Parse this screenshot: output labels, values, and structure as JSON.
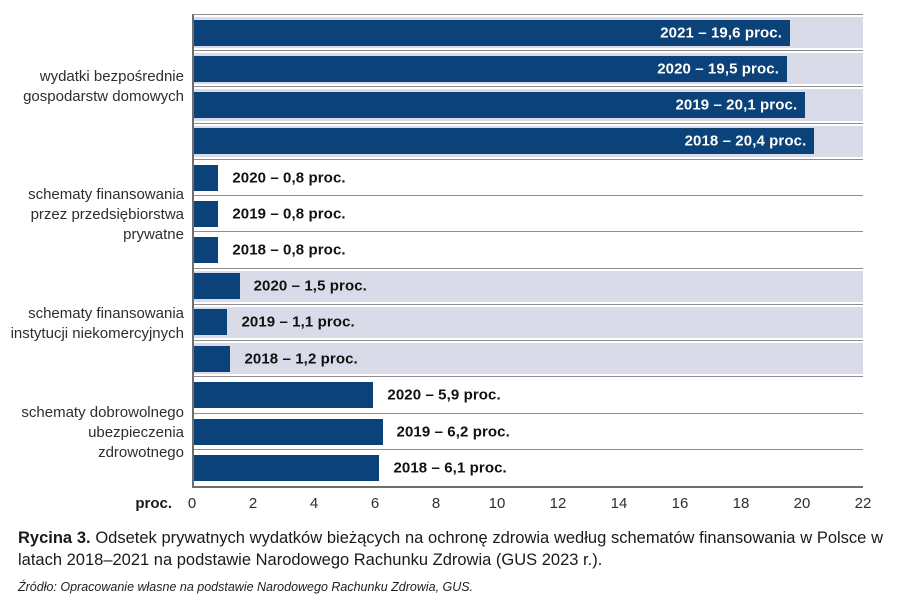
{
  "chart_data": {
    "type": "bar",
    "orientation": "horizontal",
    "unit_label": "proc.",
    "xlim": [
      0,
      22
    ],
    "x_ticks": [
      0,
      2,
      4,
      6,
      8,
      10,
      12,
      14,
      16,
      18,
      20,
      22
    ],
    "grid": false,
    "groups": [
      {
        "category_lines": [
          "wydatki bezpośrednie",
          "gospodarstw domowych"
        ],
        "banded": true,
        "bars": [
          {
            "year": "2021",
            "value": 19.6,
            "label": "2021 – 19,6 proc.",
            "label_inside": true
          },
          {
            "year": "2020",
            "value": 19.5,
            "label": "2020 – 19,5 proc.",
            "label_inside": true
          },
          {
            "year": "2019",
            "value": 20.1,
            "label": "2019 – 20,1 proc.",
            "label_inside": true
          },
          {
            "year": "2018",
            "value": 20.4,
            "label": "2018 – 20,4 proc.",
            "label_inside": true
          }
        ]
      },
      {
        "category_lines": [
          "schematy finansowania",
          "przez przedsiębiorstwa",
          "prywatne"
        ],
        "banded": false,
        "bars": [
          {
            "year": "2020",
            "value": 0.8,
            "label": "2020 – 0,8 proc.",
            "label_inside": false
          },
          {
            "year": "2019",
            "value": 0.8,
            "label": "2019 – 0,8 proc.",
            "label_inside": false
          },
          {
            "year": "2018",
            "value": 0.8,
            "label": "2018 – 0,8 proc.",
            "label_inside": false
          }
        ]
      },
      {
        "category_lines": [
          "schematy finansowania",
          "instytucji niekomercyjnych"
        ],
        "banded": true,
        "bars": [
          {
            "year": "2020",
            "value": 1.5,
            "label": "2020 – 1,5 proc.",
            "label_inside": false
          },
          {
            "year": "2019",
            "value": 1.1,
            "label": "2019 – 1,1 proc.",
            "label_inside": false
          },
          {
            "year": "2018",
            "value": 1.2,
            "label": "2018 – 1,2 proc.",
            "label_inside": false
          }
        ]
      },
      {
        "category_lines": [
          "schematy dobrowolnego",
          "ubezpieczenia zdrowotnego"
        ],
        "banded": false,
        "bars": [
          {
            "year": "2020",
            "value": 5.9,
            "label": "2020 – 5,9 proc.",
            "label_inside": false
          },
          {
            "year": "2019",
            "value": 6.2,
            "label": "2019 – 6,2 proc.",
            "label_inside": false
          },
          {
            "year": "2018",
            "value": 6.1,
            "label": "2018 – 6,1 proc.",
            "label_inside": false
          }
        ]
      }
    ]
  },
  "caption": {
    "prefix": "Rycina 3.",
    "body": " Odsetek prywatnych wydatków bieżących na ochronę zdrowia według schematów finansowania w Polsce w latach 2018–2021 na podstawie Narodowego Rachunku Zdrowia (GUS 2023 r.)."
  },
  "source": "Źródło: Opracowanie własne na podstawie Narodowego Rachunku Zdrowia, GUS.",
  "colors": {
    "bar": "#0b4279",
    "band": "#d9dce8",
    "separator": "#8d8f94",
    "frame": "#6e6e6e",
    "label_inside": "#ffffff",
    "label_outside": "#111111"
  }
}
